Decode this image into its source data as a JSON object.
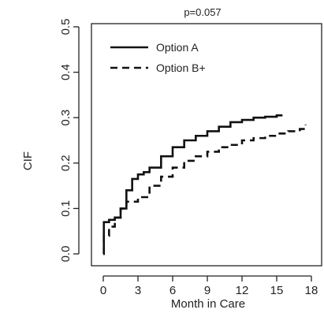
{
  "chart_data": {
    "type": "line",
    "title": "p=0.057",
    "xlabel": "Month in Care",
    "ylabel": "CIF",
    "xlim": [
      0,
      18
    ],
    "ylim": [
      0,
      0.5
    ],
    "xticks": [
      0,
      3,
      6,
      9,
      12,
      15,
      18
    ],
    "yticks": [
      0.0,
      0.1,
      0.2,
      0.3,
      0.4,
      0.5
    ],
    "xtick_labels": [
      "0",
      "3",
      "6",
      "9",
      "12",
      "15",
      "18"
    ],
    "ytick_labels": [
      "0.0",
      "0.1",
      "0.2",
      "0.3",
      "0.4",
      "0.5"
    ],
    "grid": false,
    "legend_position": "top-left",
    "series": [
      {
        "name": "Option A",
        "style": "solid",
        "color": "#111111",
        "step": true,
        "x": [
          0,
          0.05,
          0.5,
          1.0,
          1.5,
          2.0,
          2.5,
          3.0,
          3.5,
          4.0,
          5.0,
          6.0,
          7.0,
          8.0,
          9.0,
          10.0,
          11.0,
          12.0,
          13.0,
          14.0,
          15.0,
          15.5
        ],
        "y": [
          0.0,
          0.07,
          0.075,
          0.08,
          0.1,
          0.14,
          0.165,
          0.175,
          0.18,
          0.19,
          0.215,
          0.235,
          0.25,
          0.26,
          0.27,
          0.28,
          0.29,
          0.295,
          0.3,
          0.302,
          0.305,
          0.305
        ]
      },
      {
        "name": "Option B+",
        "style": "dashed",
        "color": "#111111",
        "step": true,
        "x": [
          0,
          0.05,
          0.5,
          1.0,
          1.5,
          2.0,
          3.0,
          4.0,
          5.0,
          6.0,
          7.0,
          8.0,
          9.0,
          10.0,
          11.0,
          12.0,
          13.0,
          14.0,
          15.0,
          16.0,
          17.0,
          17.5
        ],
        "y": [
          0.0,
          0.04,
          0.06,
          0.08,
          0.1,
          0.115,
          0.125,
          0.15,
          0.17,
          0.19,
          0.205,
          0.215,
          0.225,
          0.235,
          0.24,
          0.25,
          0.255,
          0.26,
          0.265,
          0.27,
          0.275,
          0.285
        ]
      }
    ]
  }
}
